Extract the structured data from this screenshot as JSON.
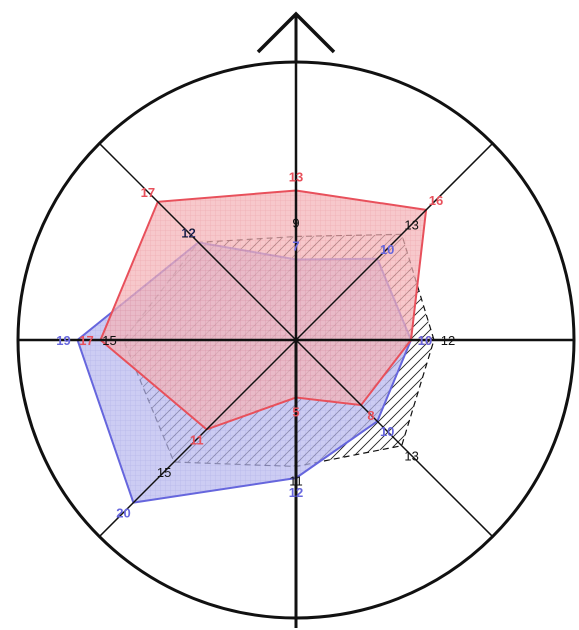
{
  "chart_data": {
    "type": "radar",
    "axes_count": 8,
    "value_range": [
      0,
      20
    ],
    "grid": false,
    "series": [
      {
        "color": "#e8505b",
        "fill": "crosshatch",
        "values": [
          13,
          16,
          10,
          8,
          5,
          11,
          17,
          17
        ]
      },
      {
        "color": "#6666dd",
        "fill": "crosshatch",
        "values": [
          7,
          10,
          10,
          10,
          12,
          20,
          19,
          12
        ]
      },
      {
        "color": "#111111",
        "fill": "diagonal-hatch",
        "line_style": "dashed",
        "values": [
          9,
          13,
          12,
          13,
          11,
          15,
          15,
          12
        ]
      }
    ]
  }
}
